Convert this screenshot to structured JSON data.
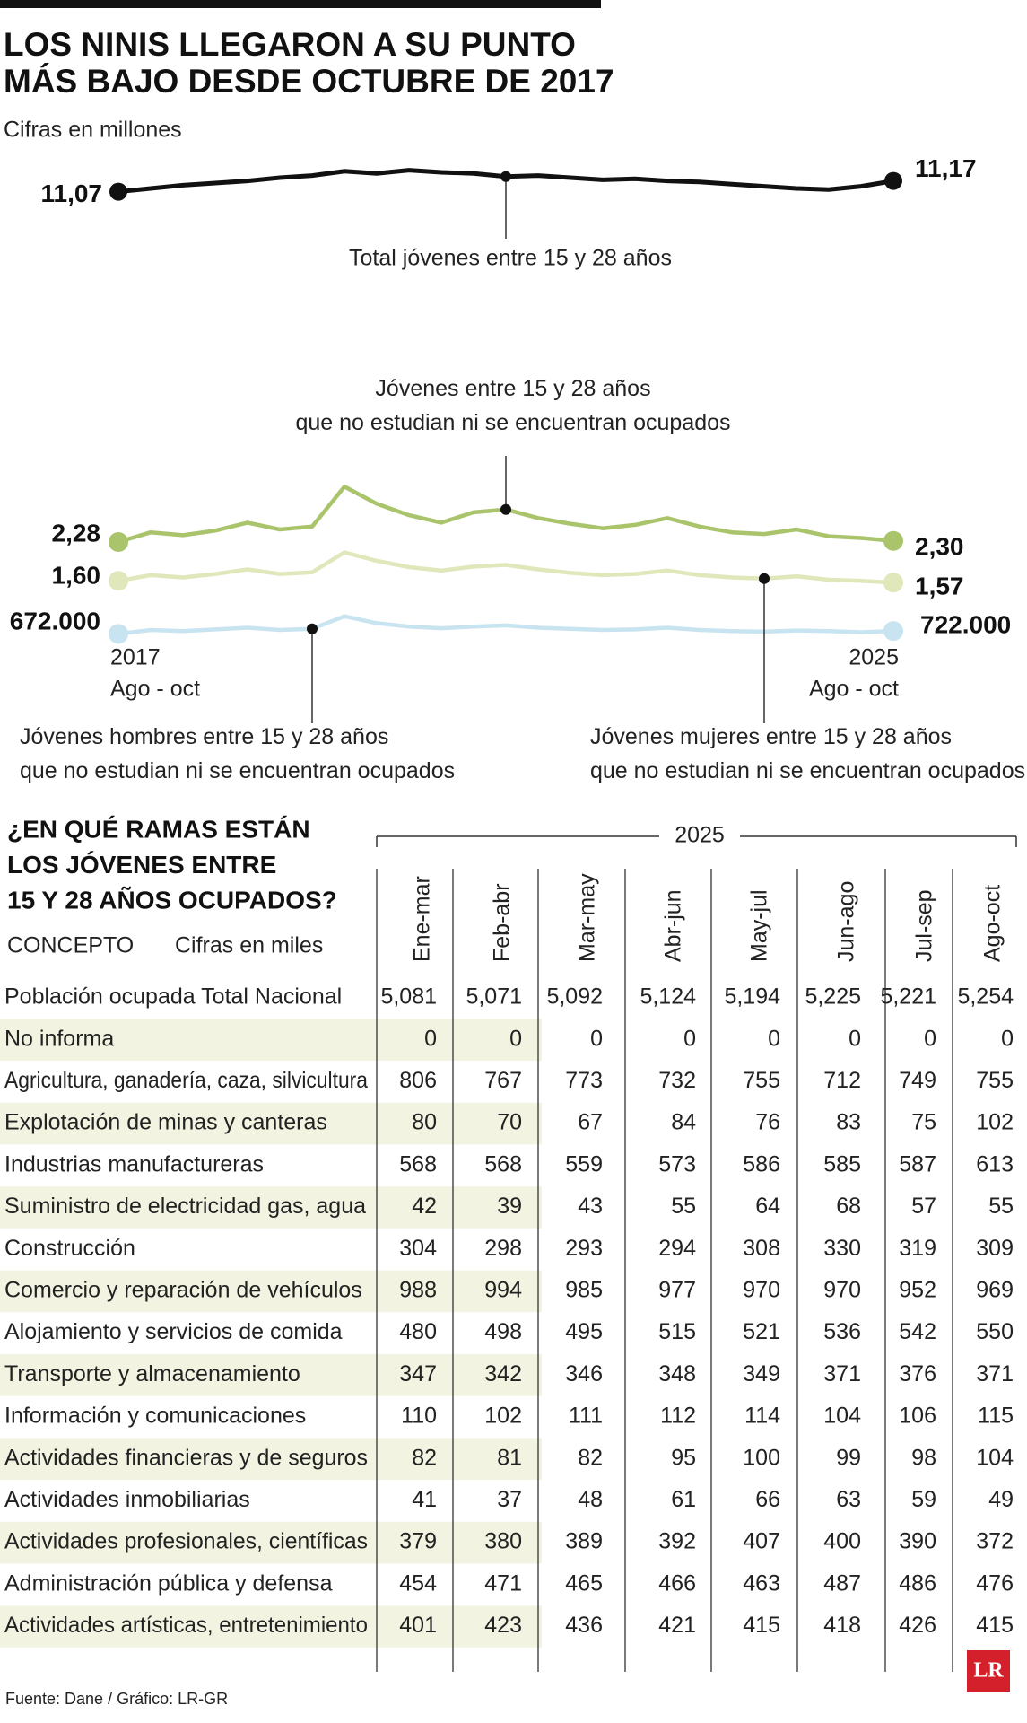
{
  "header": {
    "title_lines": [
      "LOS NINIS LLEGARON A SU PUNTO",
      "MÁS BAJO DESDE OCTUBRE DE 2017"
    ],
    "subtitle": "Cifras en millones"
  },
  "chart_data": [
    {
      "type": "line",
      "ylim": [
        10.6,
        11.6
      ],
      "series": [
        {
          "name": "Total jóvenes entre 15 y 28 años",
          "color": "#111111",
          "values": [
            11.07,
            11.1,
            11.13,
            11.15,
            11.17,
            11.2,
            11.22,
            11.26,
            11.24,
            11.27,
            11.25,
            11.24,
            11.21,
            11.22,
            11.2,
            11.18,
            11.19,
            11.17,
            11.16,
            11.14,
            11.12,
            11.1,
            11.09,
            11.12,
            11.17
          ],
          "value_labels": [
            "11,07",
            null,
            null,
            null,
            null,
            null,
            null,
            null,
            null,
            null,
            null,
            null,
            null,
            null,
            null,
            null,
            null,
            null,
            null,
            null,
            null,
            null,
            null,
            null,
            "11,17"
          ]
        }
      ]
    },
    {
      "type": "line",
      "ylim": [
        0.3,
        3.6
      ],
      "x_labels": [
        {
          "year": "2017",
          "period": "Ago - oct"
        },
        {
          "year": "2025",
          "period": "Ago - oct"
        }
      ],
      "series": [
        {
          "name": "Jóvenes entre 15 y 28 años\nque no estudian ni se encuentran ocupados",
          "color": "#a9c46b",
          "values": [
            2.28,
            2.45,
            2.4,
            2.48,
            2.62,
            2.5,
            2.55,
            3.25,
            2.95,
            2.75,
            2.62,
            2.8,
            2.85,
            2.7,
            2.6,
            2.52,
            2.58,
            2.7,
            2.55,
            2.45,
            2.42,
            2.5,
            2.38,
            2.35,
            2.3
          ],
          "value_labels": [
            "2,28",
            null,
            null,
            null,
            null,
            null,
            null,
            null,
            null,
            null,
            null,
            null,
            null,
            null,
            null,
            null,
            null,
            null,
            null,
            null,
            null,
            null,
            null,
            null,
            "2,30"
          ]
        },
        {
          "name": "Jóvenes mujeres entre 15 y 28 años\nque no estudian ni se encuentran ocupados",
          "color": "#e0e7bb",
          "values": [
            1.6,
            1.7,
            1.66,
            1.72,
            1.8,
            1.72,
            1.75,
            2.1,
            1.95,
            1.84,
            1.78,
            1.85,
            1.88,
            1.8,
            1.74,
            1.7,
            1.72,
            1.78,
            1.7,
            1.66,
            1.64,
            1.68,
            1.62,
            1.6,
            1.57
          ],
          "value_labels": [
            "1,60",
            null,
            null,
            null,
            null,
            null,
            null,
            null,
            null,
            null,
            null,
            null,
            null,
            null,
            null,
            null,
            null,
            null,
            null,
            null,
            null,
            null,
            null,
            null,
            "1,57"
          ]
        },
        {
          "name": "Jóvenes hombres entre 15 y 28 años\nque no estudian ni se encuentran ocupados",
          "color": "#c8e4f1",
          "values": [
            0.672,
            0.74,
            0.72,
            0.75,
            0.78,
            0.74,
            0.76,
            0.98,
            0.86,
            0.8,
            0.77,
            0.8,
            0.82,
            0.78,
            0.76,
            0.74,
            0.75,
            0.78,
            0.74,
            0.72,
            0.71,
            0.73,
            0.72,
            0.7,
            0.722
          ],
          "value_labels": [
            "672.000",
            null,
            null,
            null,
            null,
            null,
            null,
            null,
            null,
            null,
            null,
            null,
            null,
            null,
            null,
            null,
            null,
            null,
            null,
            null,
            null,
            null,
            null,
            null,
            "722.000"
          ]
        }
      ]
    }
  ],
  "table": {
    "title_lines": [
      "¿EN QUÉ RAMAS ESTÁN",
      "LOS JÓVENES ENTRE",
      "15 Y 28 AÑOS OCUPADOS?"
    ],
    "year": "2025",
    "concept_header": "CONCEPTO",
    "unit": "Cifras en miles",
    "columns": [
      "Ene-mar",
      "Feb-abr",
      "Mar-may",
      "Abr-jun",
      "May-jul",
      "Jun-ago",
      "Jul-sep",
      "Ago-oct"
    ],
    "rows": [
      [
        "Población ocupada Total Nacional",
        "5,081",
        "5,071",
        "5,092",
        "5,124",
        "5,194",
        "5,225",
        "5,221",
        "5,254"
      ],
      [
        "No informa",
        "0",
        "0",
        "0",
        "0",
        "0",
        "0",
        "0",
        "0"
      ],
      [
        "Agricultura, ganadería, caza, silvicultura",
        "806",
        "767",
        "773",
        "732",
        "755",
        "712",
        "749",
        "755"
      ],
      [
        "Explotación de minas y canteras",
        "80",
        "70",
        "67",
        "84",
        "76",
        "83",
        "75",
        "102"
      ],
      [
        "Industrias manufactureras",
        "568",
        "568",
        "559",
        "573",
        "586",
        "585",
        "587",
        "613"
      ],
      [
        "Suministro de electricidad gas, agua",
        "42",
        "39",
        "43",
        "55",
        "64",
        "68",
        "57",
        "55"
      ],
      [
        "Construcción",
        "304",
        "298",
        "293",
        "294",
        "308",
        "330",
        "319",
        "309"
      ],
      [
        "Comercio y reparación de vehículos",
        "988",
        "994",
        "985",
        "977",
        "970",
        "970",
        "952",
        "969"
      ],
      [
        "Alojamiento y servicios de comida",
        "480",
        "498",
        "495",
        "515",
        "521",
        "536",
        "542",
        "550"
      ],
      [
        "Transporte y almacenamiento",
        "347",
        "342",
        "346",
        "348",
        "349",
        "371",
        "376",
        "371"
      ],
      [
        "Información y comunicaciones",
        "110",
        "102",
        "111",
        "112",
        "114",
        "104",
        "106",
        "115"
      ],
      [
        "Actividades financieras y de seguros",
        "82",
        "81",
        "82",
        "95",
        "100",
        "99",
        "98",
        "104"
      ],
      [
        "Actividades inmobiliarias",
        "41",
        "37",
        "48",
        "61",
        "66",
        "63",
        "59",
        "49"
      ],
      [
        "Actividades profesionales, científicas",
        "379",
        "380",
        "389",
        "392",
        "407",
        "400",
        "390",
        "372"
      ],
      [
        "Administración pública y defensa",
        "454",
        "471",
        "465",
        "466",
        "463",
        "487",
        "486",
        "476"
      ],
      [
        "Actividades artísticas, entretenimiento",
        "401",
        "423",
        "436",
        "421",
        "415",
        "418",
        "426",
        "415"
      ]
    ]
  },
  "footer": {
    "source": "Fuente: Dane / Gráfico: LR-GR",
    "logo": "LR"
  }
}
